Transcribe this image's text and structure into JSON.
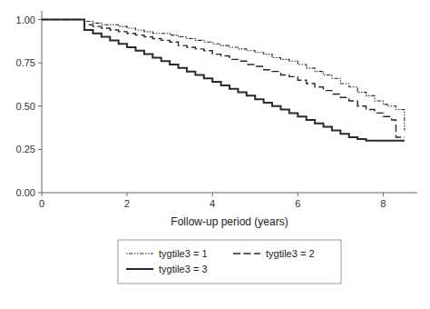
{
  "chart_data": {
    "type": "step",
    "xlabel": "Follow-up period (years)",
    "xlim": [
      0,
      8.8
    ],
    "ylim": [
      0.0,
      1.05
    ],
    "xticks": [
      0,
      2,
      4,
      6,
      8
    ],
    "yticks": [
      {
        "value": 0.0,
        "label": "0.00"
      },
      {
        "value": 0.25,
        "label": "0.25"
      },
      {
        "value": 0.5,
        "label": "0.50"
      },
      {
        "value": 0.75,
        "label": "0.75"
      },
      {
        "value": 1.0,
        "label": "1.00"
      }
    ],
    "grid": false,
    "legend": "bottom",
    "series": [
      {
        "name": "tygtile3 = 1",
        "color": "#2a2a2a",
        "line_style": "dashdot",
        "x": [
          0,
          1.0,
          1.0,
          1.2,
          1.4,
          1.6,
          1.8,
          2.0,
          2.2,
          2.4,
          2.6,
          2.8,
          3.0,
          3.2,
          3.4,
          3.6,
          3.8,
          4.0,
          4.2,
          4.4,
          4.6,
          4.8,
          5.0,
          5.2,
          5.4,
          5.6,
          5.8,
          6.0,
          6.2,
          6.4,
          6.6,
          6.8,
          7.0,
          7.2,
          7.4,
          7.6,
          7.8,
          8.0,
          8.1,
          8.3,
          8.5,
          8.5
        ],
        "values": [
          1.0,
          1.0,
          0.99,
          0.98,
          0.97,
          0.97,
          0.96,
          0.95,
          0.94,
          0.93,
          0.92,
          0.92,
          0.91,
          0.9,
          0.89,
          0.88,
          0.87,
          0.86,
          0.85,
          0.84,
          0.83,
          0.82,
          0.81,
          0.8,
          0.78,
          0.77,
          0.76,
          0.74,
          0.72,
          0.7,
          0.68,
          0.66,
          0.63,
          0.61,
          0.58,
          0.56,
          0.53,
          0.51,
          0.5,
          0.48,
          0.36,
          0.36
        ]
      },
      {
        "name": "tygtile3 = 2",
        "color": "#2a2a2a",
        "line_style": "dashed",
        "x": [
          0,
          1.0,
          1.0,
          1.2,
          1.4,
          1.6,
          1.8,
          2.0,
          2.2,
          2.4,
          2.6,
          2.8,
          3.0,
          3.2,
          3.4,
          3.6,
          3.8,
          4.0,
          4.2,
          4.4,
          4.6,
          4.8,
          5.0,
          5.2,
          5.4,
          5.6,
          5.8,
          6.0,
          6.2,
          6.4,
          6.6,
          6.8,
          7.0,
          7.2,
          7.4,
          7.6,
          7.8,
          8.0,
          8.2,
          8.3,
          8.5,
          8.5
        ],
        "values": [
          1.0,
          1.0,
          0.97,
          0.96,
          0.95,
          0.94,
          0.93,
          0.92,
          0.91,
          0.9,
          0.89,
          0.88,
          0.87,
          0.85,
          0.84,
          0.83,
          0.82,
          0.8,
          0.79,
          0.77,
          0.76,
          0.74,
          0.73,
          0.71,
          0.7,
          0.68,
          0.67,
          0.65,
          0.63,
          0.61,
          0.59,
          0.57,
          0.55,
          0.53,
          0.5,
          0.48,
          0.46,
          0.44,
          0.42,
          0.32,
          0.32,
          0.32
        ]
      },
      {
        "name": "tygtile3 = 3",
        "color": "#2a2a2a",
        "line_style": "solid",
        "x": [
          0,
          1.0,
          1.0,
          1.2,
          1.4,
          1.6,
          1.8,
          2.0,
          2.2,
          2.4,
          2.6,
          2.8,
          3.0,
          3.2,
          3.4,
          3.6,
          3.8,
          4.0,
          4.2,
          4.4,
          4.6,
          4.8,
          5.0,
          5.2,
          5.4,
          5.6,
          5.8,
          6.0,
          6.2,
          6.4,
          6.6,
          6.8,
          7.0,
          7.2,
          7.4,
          7.6,
          7.8,
          7.9,
          8.5,
          8.5
        ],
        "values": [
          1.0,
          1.0,
          0.94,
          0.92,
          0.9,
          0.88,
          0.86,
          0.84,
          0.82,
          0.8,
          0.78,
          0.76,
          0.74,
          0.72,
          0.7,
          0.68,
          0.66,
          0.64,
          0.62,
          0.6,
          0.58,
          0.56,
          0.54,
          0.52,
          0.5,
          0.48,
          0.46,
          0.44,
          0.42,
          0.4,
          0.38,
          0.36,
          0.34,
          0.32,
          0.31,
          0.3,
          0.3,
          0.3,
          0.3,
          0.3
        ]
      }
    ]
  }
}
